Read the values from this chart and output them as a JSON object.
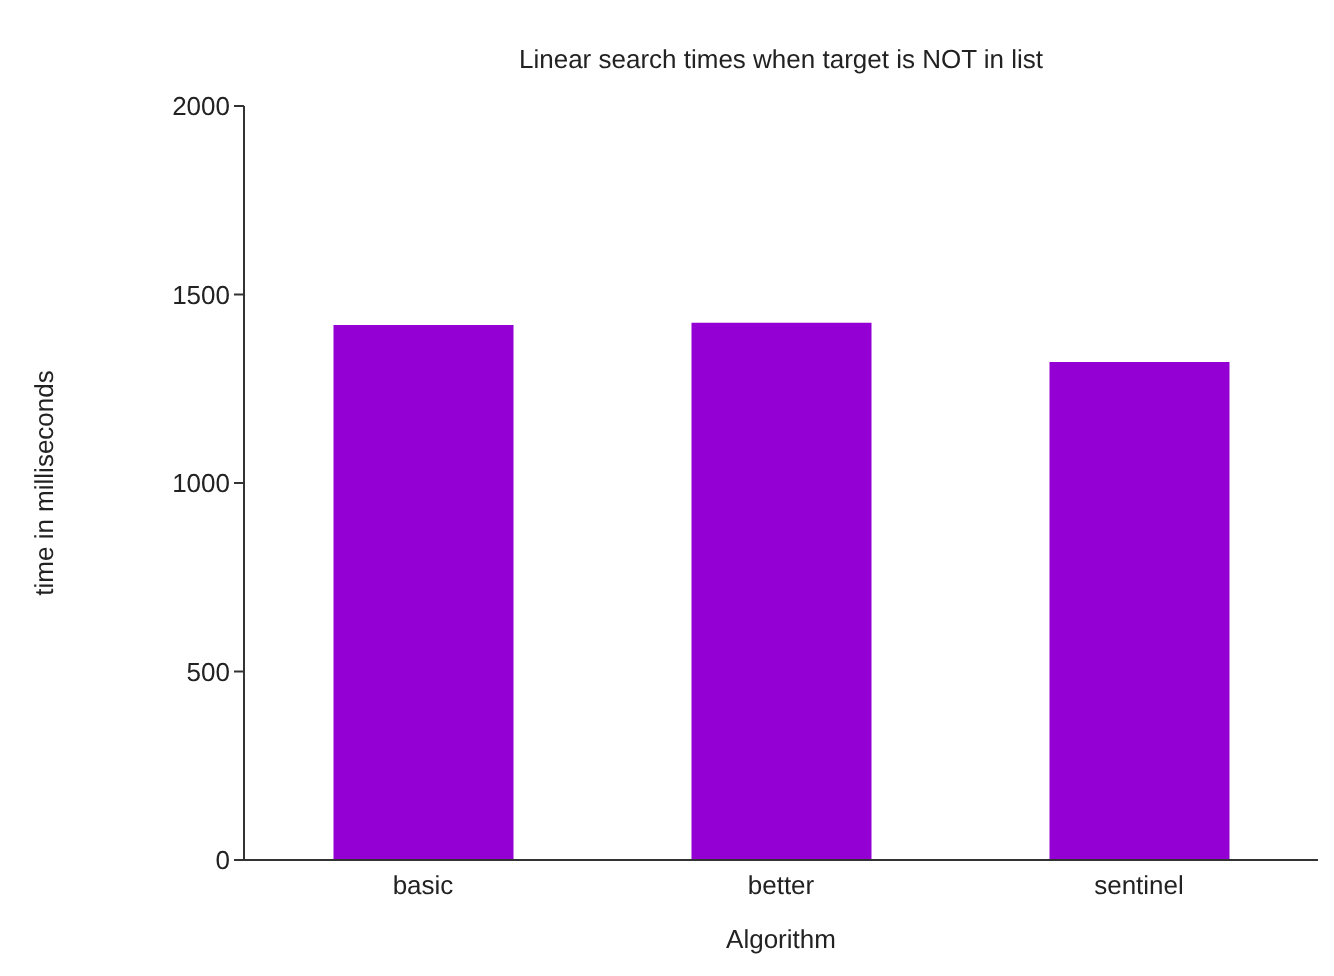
{
  "chart_data": {
    "type": "bar",
    "title": "Linear search times when target is NOT in list",
    "xlabel": "Algorithm",
    "ylabel": "time in milliseconds",
    "categories": [
      "basic",
      "better",
      "sentinel"
    ],
    "values": [
      1419,
      1425,
      1321
    ],
    "color": "#9400d3",
    "ylim": [
      0,
      2000
    ],
    "yticks": [
      0,
      500,
      1000,
      1500,
      2000
    ],
    "grid": false,
    "legend": false
  }
}
